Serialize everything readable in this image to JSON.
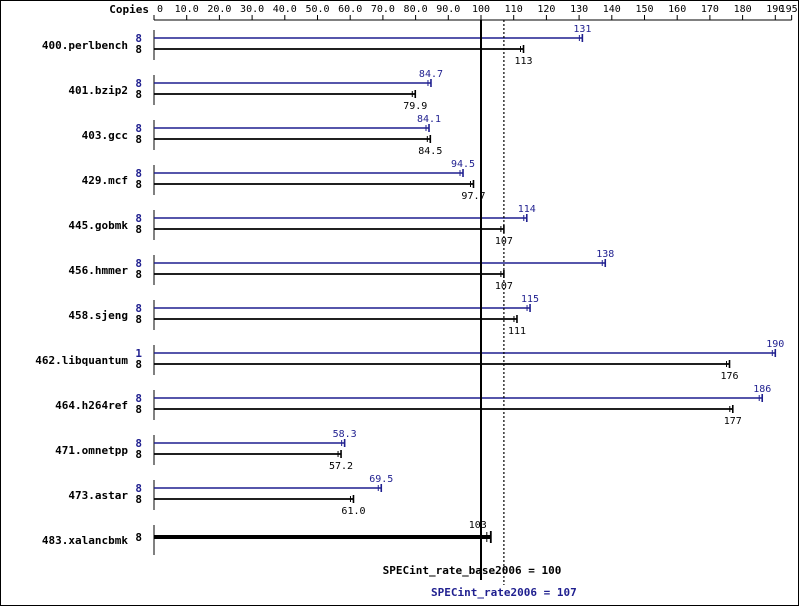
{
  "chart_data": {
    "type": "bar",
    "copies_label": "Copies",
    "xlim": [
      0,
      195
    ],
    "ticks": [
      0,
      10.0,
      20.0,
      30.0,
      40.0,
      50.0,
      60.0,
      70.0,
      80.0,
      90.0,
      100,
      110,
      120,
      130,
      140,
      150,
      160,
      170,
      180,
      190,
      195
    ],
    "tick_labels": [
      "0",
      "10.0",
      "20.0",
      "30.0",
      "40.0",
      "50.0",
      "60.0",
      "70.0",
      "80.0",
      "90.0",
      "100",
      "110",
      "120",
      "130",
      "140",
      "150",
      "160",
      "170",
      "180",
      "190",
      "195"
    ],
    "colors": {
      "base": "#000000",
      "peak": "#1f1f8f"
    },
    "benchmarks": [
      {
        "name": "400.perlbench",
        "peak_copies": "8",
        "peak": 131,
        "peak_label": "131",
        "base_copies": "8",
        "base": 113,
        "base_label": "113"
      },
      {
        "name": "401.bzip2",
        "peak_copies": "8",
        "peak": 84.7,
        "peak_label": "84.7",
        "base_copies": "8",
        "base": 79.9,
        "base_label": "79.9"
      },
      {
        "name": "403.gcc",
        "peak_copies": "8",
        "peak": 84.1,
        "peak_label": "84.1",
        "base_copies": "8",
        "base": 84.5,
        "base_label": "84.5"
      },
      {
        "name": "429.mcf",
        "peak_copies": "8",
        "peak": 94.5,
        "peak_label": "94.5",
        "base_copies": "8",
        "base": 97.7,
        "base_label": "97.7"
      },
      {
        "name": "445.gobmk",
        "peak_copies": "8",
        "peak": 114,
        "peak_label": "114",
        "base_copies": "8",
        "base": 107,
        "base_label": "107"
      },
      {
        "name": "456.hmmer",
        "peak_copies": "8",
        "peak": 138,
        "peak_label": "138",
        "base_copies": "8",
        "base": 107,
        "base_label": "107"
      },
      {
        "name": "458.sjeng",
        "peak_copies": "8",
        "peak": 115,
        "peak_label": "115",
        "base_copies": "8",
        "base": 111,
        "base_label": "111"
      },
      {
        "name": "462.libquantum",
        "peak_copies": "1",
        "peak": 190,
        "peak_label": "190",
        "base_copies": "8",
        "base": 176,
        "base_label": "176"
      },
      {
        "name": "464.h264ref",
        "peak_copies": "8",
        "peak": 186,
        "peak_label": "186",
        "base_copies": "8",
        "base": 177,
        "base_label": "177"
      },
      {
        "name": "471.omnetpp",
        "peak_copies": "8",
        "peak": 58.3,
        "peak_label": "58.3",
        "base_copies": "8",
        "base": 57.2,
        "base_label": "57.2"
      },
      {
        "name": "473.astar",
        "peak_copies": "8",
        "peak": 69.5,
        "peak_label": "69.5",
        "base_copies": "8",
        "base": 61.0,
        "base_label": "61.0"
      },
      {
        "name": "483.xalancbmk",
        "peak_copies": null,
        "peak": null,
        "peak_label": null,
        "base_copies": "8",
        "base": 103,
        "base_label": "103"
      }
    ],
    "summary": {
      "base_value": 100,
      "base_label": "SPECint_rate_base2006 = 100",
      "peak_value": 107,
      "peak_label": "SPECint_rate2006 = 107"
    }
  }
}
